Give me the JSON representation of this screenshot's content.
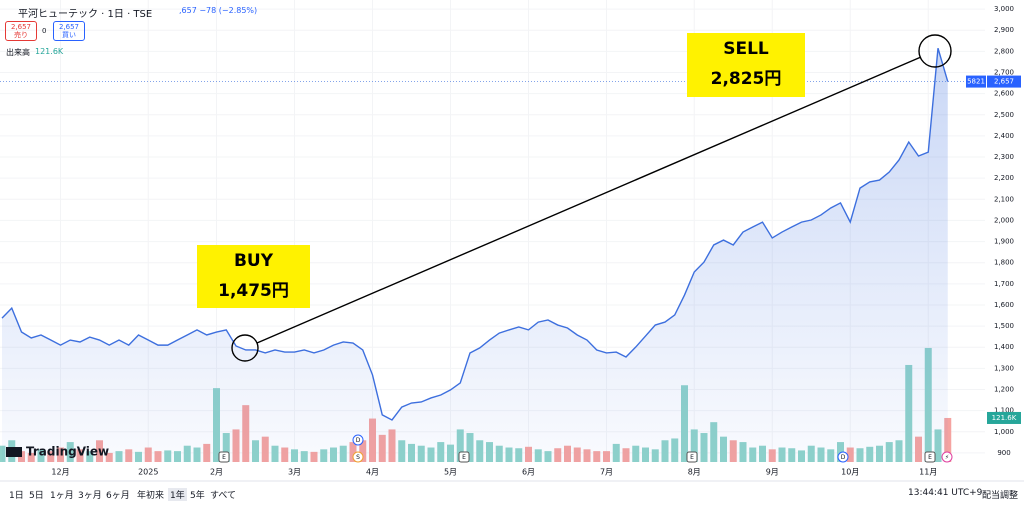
{
  "header": {
    "symbol_title": "平河ヒューテック · 1日 · TSE",
    "quote": ",657 −78 (−2.85%)",
    "sell_price": "2,657",
    "sell_label": "売り",
    "spread": "0",
    "buy_price": "2,657",
    "buy_label": "買い",
    "volume_title": "出来高",
    "volume_value": "121.6K"
  },
  "chart_data": {
    "type": "line",
    "categories": [
      null,
      null,
      null,
      null,
      null,
      null,
      "12月",
      null,
      null,
      null,
      null,
      null,
      null,
      null,
      null,
      "2025",
      null,
      null,
      null,
      null,
      null,
      null,
      "2月",
      null,
      null,
      null,
      null,
      null,
      null,
      null,
      "3月",
      null,
      null,
      null,
      null,
      null,
      null,
      null,
      "4月",
      null,
      null,
      null,
      null,
      null,
      null,
      null,
      "5月",
      null,
      null,
      null,
      null,
      null,
      null,
      null,
      "6月",
      null,
      null,
      null,
      null,
      null,
      null,
      null,
      "7月",
      null,
      null,
      null,
      null,
      null,
      null,
      null,
      null,
      "8月",
      null,
      null,
      null,
      null,
      null,
      null,
      null,
      "9月",
      null,
      null,
      null,
      null,
      null,
      null,
      null,
      "10月",
      null,
      null,
      null,
      null,
      null,
      null,
      null,
      "11月",
      null,
      null
    ],
    "series": [
      {
        "color": "#3d6fde",
        "values": [
          1538,
          1585,
          1472,
          1444,
          1458,
          1434,
          1410,
          1434,
          1425,
          1448,
          1434,
          1410,
          1434,
          1410,
          1458,
          1434,
          1410,
          1410,
          1434,
          1458,
          1482,
          1458,
          1472,
          1482,
          1406,
          1387,
          1387,
          1373,
          1387,
          1377,
          1377,
          1387,
          1373,
          1387,
          1410,
          1425,
          1420,
          1387,
          1269,
          1080,
          1056,
          1117,
          1136,
          1141,
          1160,
          1174,
          1198,
          1231,
          1373,
          1397,
          1434,
          1467,
          1482,
          1496,
          1482,
          1519,
          1529,
          1505,
          1491,
          1458,
          1434,
          1387,
          1373,
          1377,
          1354,
          1401,
          1453,
          1505,
          1519,
          1553,
          1647,
          1756,
          1803,
          1884,
          1907,
          1884,
          1945,
          1969,
          1992,
          1917,
          1945,
          1969,
          1992,
          2002,
          2026,
          2059,
          2083,
          1992,
          2153,
          2182,
          2191,
          2229,
          2286,
          2371,
          2305,
          2323,
          2815,
          2657
        ]
      }
    ],
    "volume": {
      "color_up": "#8fd3ca",
      "color_down": "#f5a3a0",
      "ylim": [
        0,
        1276
      ],
      "values": [
        45,
        60,
        30,
        25,
        35,
        30,
        40,
        55,
        35,
        30,
        60,
        25,
        30,
        35,
        28,
        40,
        30,
        32,
        30,
        45,
        40,
        50,
        204,
        80,
        90,
        157,
        60,
        70,
        45,
        40,
        35,
        30,
        28,
        35,
        40,
        45,
        55,
        60,
        120,
        75,
        90,
        60,
        50,
        45,
        40,
        55,
        48,
        90,
        80,
        60,
        55,
        45,
        40,
        38,
        42,
        35,
        30,
        38,
        45,
        40,
        35,
        30,
        30,
        50,
        38,
        45,
        40,
        35,
        60,
        65,
        212,
        90,
        80,
        110,
        70,
        60,
        55,
        40,
        45,
        35,
        40,
        38,
        32,
        45,
        40,
        35,
        55,
        40,
        38,
        42,
        45,
        55,
        60,
        268,
        70,
        315,
        90,
        121.6
      ]
    },
    "ylim": [
      857,
      3043
    ],
    "yticks": [
      900,
      {
        "value": 1000,
        "label": "1,000"
      },
      {
        "value": 1100,
        "label": "1,100"
      },
      {
        "value": 1200,
        "label": "1,200"
      },
      {
        "value": 1300,
        "label": "1,300"
      },
      {
        "value": 1400,
        "label": "1,400"
      },
      {
        "value": 1500,
        "label": "1,500"
      },
      {
        "value": 1600,
        "label": "1,600"
      },
      {
        "value": 1700,
        "label": "1,700"
      },
      {
        "value": 1800,
        "label": "1,800"
      },
      {
        "value": 1900,
        "label": "1,900"
      },
      {
        "value": 2000,
        "label": "2,000"
      },
      {
        "value": 2100,
        "label": "2,100"
      },
      {
        "value": 2200,
        "label": "2,200"
      },
      {
        "value": 2300,
        "label": "2,300"
      },
      {
        "value": 2400,
        "label": "2,400"
      },
      {
        "value": 2500,
        "label": "2,500"
      },
      {
        "value": 2600,
        "label": "2,600"
      },
      {
        "value": 2700,
        "label": "2,700"
      },
      {
        "value": 2800,
        "label": "2,800"
      },
      {
        "value": 2900,
        "label": "2,900"
      },
      {
        "value": 3000,
        "label": "3,000"
      }
    ],
    "last_price_label": "2,657",
    "symbol_code": "5821",
    "volume_label": "121.6K",
    "annotations": [
      {
        "lines": [
          "BUY",
          "1,475円"
        ]
      },
      {
        "lines": [
          "SELL",
          "2,825円"
        ]
      }
    ],
    "events": [
      "E",
      "D",
      "S",
      "E",
      "E",
      "D",
      "E",
      "⚡"
    ],
    "logo": "TradingView"
  },
  "toolbar": {
    "ranges": [
      "1日",
      "5日",
      "1ヶ月",
      "3ヶ月",
      "6ヶ月",
      "年初来",
      "1年",
      "5年",
      "すべて"
    ],
    "time": "13:44:41 UTC+9",
    "adjust": "配当調整"
  }
}
